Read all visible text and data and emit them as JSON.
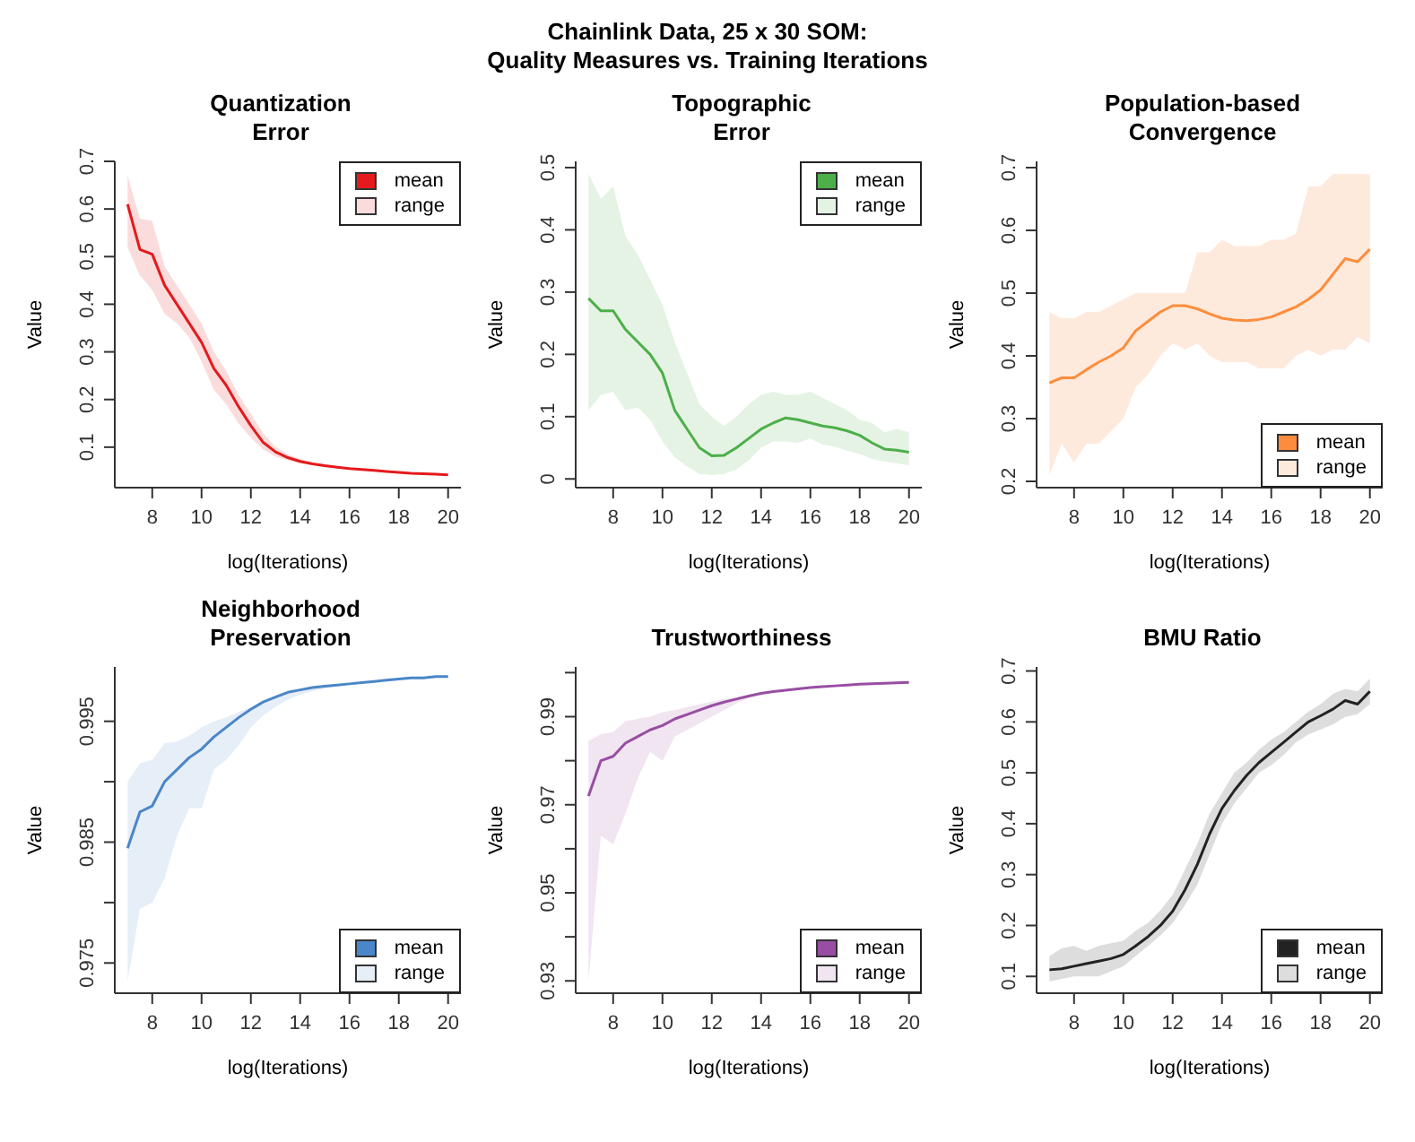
{
  "chart_data": [
    {
      "type": "line",
      "title": "Quantization\nError",
      "xlabel": "log(Iterations)",
      "ylabel": "Value",
      "annotations": [
        "Chainlink Data, 25 x 30 SOM:\nQuality Measures vs. Training Iterations"
      ],
      "legend": "top right",
      "grid": false,
      "marker": "none",
      "xlim": [
        6.48,
        20.52
      ],
      "xticks": [
        8,
        10,
        12,
        14,
        16,
        18,
        20
      ],
      "ylim": [
        0.015,
        0.7
      ],
      "yticks": [
        0.1,
        0.2,
        0.3,
        0.4,
        0.5,
        0.6,
        0.7
      ],
      "x": [
        7,
        7.5,
        8,
        8.5,
        9,
        9.5,
        10,
        10.5,
        11,
        11.5,
        12,
        12.5,
        13,
        13.5,
        14,
        14.5,
        15,
        15.5,
        16,
        16.5,
        17,
        17.5,
        18,
        18.5,
        19,
        19.5,
        20
      ],
      "series": [
        {
          "name": "mean",
          "color": "#e41a1c",
          "values": [
            0.61,
            0.515,
            0.505,
            0.44,
            0.4,
            0.36,
            0.32,
            0.265,
            0.23,
            0.185,
            0.145,
            0.11,
            0.09,
            0.078,
            0.07,
            0.065,
            0.061,
            0.058,
            0.055,
            0.053,
            0.051,
            0.049,
            0.047,
            0.045,
            0.044,
            0.043,
            0.042
          ],
          "upper": [
            0.67,
            0.58,
            0.575,
            0.48,
            0.44,
            0.4,
            0.36,
            0.3,
            0.26,
            0.21,
            0.17,
            0.13,
            0.1,
            0.085,
            0.075,
            0.068,
            0.063,
            0.06,
            0.057,
            0.054,
            0.052,
            0.05,
            0.048,
            0.046,
            0.045,
            0.044,
            0.043
          ],
          "lower": [
            0.52,
            0.46,
            0.43,
            0.38,
            0.36,
            0.33,
            0.28,
            0.22,
            0.19,
            0.15,
            0.12,
            0.095,
            0.08,
            0.072,
            0.066,
            0.062,
            0.058,
            0.056,
            0.053,
            0.051,
            0.049,
            0.047,
            0.045,
            0.044,
            0.043,
            0.042,
            0.041
          ]
        },
        {
          "name": "range",
          "type": "area",
          "color": "#fbdcdc",
          "values": [
            null,
            null,
            null,
            null,
            null,
            null,
            null,
            null,
            null,
            null,
            null,
            null,
            null,
            null,
            null,
            null,
            null,
            null,
            null,
            null,
            null,
            null,
            null,
            null,
            null,
            null,
            null
          ]
        }
      ]
    },
    {
      "type": "line",
      "title": "Topographic\nError",
      "xlabel": "log(Iterations)",
      "ylabel": "Value",
      "legend": "top right",
      "grid": false,
      "marker": "none",
      "xlim": [
        6.48,
        20.52
      ],
      "xticks": [
        8,
        10,
        12,
        14,
        16,
        18,
        20
      ],
      "ylim": [
        -0.014,
        0.51
      ],
      "yticks": [
        0.0,
        0.1,
        0.2,
        0.3,
        0.4,
        0.5
      ],
      "x": [
        7,
        7.5,
        8,
        8.5,
        9,
        9.5,
        10,
        10.5,
        11,
        11.5,
        12,
        12.5,
        13,
        13.5,
        14,
        14.5,
        15,
        15.5,
        16,
        16.5,
        17,
        17.5,
        18,
        18.5,
        19,
        19.5,
        20
      ],
      "series": [
        {
          "name": "mean",
          "color": "#4daf4a",
          "values": [
            0.29,
            0.27,
            0.27,
            0.24,
            0.22,
            0.2,
            0.17,
            0.11,
            0.08,
            0.05,
            0.037,
            0.038,
            0.05,
            0.065,
            0.08,
            0.09,
            0.098,
            0.095,
            0.09,
            0.085,
            0.082,
            0.077,
            0.07,
            0.058,
            0.048,
            0.046,
            0.043
          ],
          "upper": [
            0.49,
            0.45,
            0.47,
            0.39,
            0.36,
            0.32,
            0.28,
            0.22,
            0.17,
            0.12,
            0.1,
            0.085,
            0.1,
            0.12,
            0.135,
            0.14,
            0.135,
            0.135,
            0.14,
            0.13,
            0.12,
            0.11,
            0.095,
            0.09,
            0.075,
            0.08,
            0.075
          ],
          "lower": [
            0.11,
            0.135,
            0.14,
            0.11,
            0.115,
            0.095,
            0.06,
            0.035,
            0.02,
            0.008,
            0.006,
            0.008,
            0.015,
            0.03,
            0.05,
            0.06,
            0.06,
            0.058,
            0.065,
            0.055,
            0.052,
            0.045,
            0.04,
            0.032,
            0.028,
            0.025,
            0.022
          ]
        },
        {
          "name": "range",
          "type": "area",
          "color": "#e5f3e4",
          "values": [
            null,
            null,
            null,
            null,
            null,
            null,
            null,
            null,
            null,
            null,
            null,
            null,
            null,
            null,
            null,
            null,
            null,
            null,
            null,
            null,
            null,
            null,
            null,
            null,
            null,
            null,
            null
          ]
        }
      ]
    },
    {
      "type": "line",
      "title": "Population-based\nConvergence",
      "xlabel": "log(Iterations)",
      "ylabel": "Value",
      "legend": "bottom right",
      "grid": false,
      "marker": "none",
      "xlim": [
        6.48,
        20.52
      ],
      "xticks": [
        8,
        10,
        12,
        14,
        16,
        18,
        20
      ],
      "ylim": [
        0.19,
        0.71
      ],
      "yticks": [
        0.2,
        0.3,
        0.4,
        0.5,
        0.6,
        0.7
      ],
      "x": [
        7,
        7.5,
        8,
        8.5,
        9,
        9.5,
        10,
        10.5,
        11,
        11.5,
        12,
        12.5,
        13,
        13.5,
        14,
        14.5,
        15,
        15.5,
        16,
        16.5,
        17,
        17.5,
        18,
        18.5,
        19,
        19.5,
        20
      ],
      "series": [
        {
          "name": "mean",
          "color": "#fd8d3c",
          "values": [
            0.357,
            0.365,
            0.365,
            0.378,
            0.39,
            0.4,
            0.413,
            0.44,
            0.455,
            0.47,
            0.48,
            0.48,
            0.475,
            0.467,
            0.46,
            0.457,
            0.456,
            0.458,
            0.462,
            0.47,
            0.478,
            0.49,
            0.505,
            0.53,
            0.555,
            0.55,
            0.57
          ],
          "upper": [
            0.47,
            0.46,
            0.46,
            0.47,
            0.47,
            0.48,
            0.49,
            0.5,
            0.5,
            0.5,
            0.5,
            0.5,
            0.565,
            0.565,
            0.585,
            0.575,
            0.575,
            0.575,
            0.585,
            0.585,
            0.595,
            0.67,
            0.67,
            0.69,
            0.69,
            0.69,
            0.69
          ],
          "lower": [
            0.21,
            0.26,
            0.23,
            0.26,
            0.26,
            0.28,
            0.3,
            0.35,
            0.37,
            0.4,
            0.42,
            0.41,
            0.42,
            0.4,
            0.39,
            0.39,
            0.39,
            0.38,
            0.38,
            0.38,
            0.4,
            0.41,
            0.4,
            0.41,
            0.41,
            0.43,
            0.42
          ]
        },
        {
          "name": "range",
          "type": "area",
          "color": "#feeadd",
          "values": [
            null,
            null,
            null,
            null,
            null,
            null,
            null,
            null,
            null,
            null,
            null,
            null,
            null,
            null,
            null,
            null,
            null,
            null,
            null,
            null,
            null,
            null,
            null,
            null,
            null,
            null,
            null
          ]
        }
      ]
    },
    {
      "type": "line",
      "title": "Neighborhood\nPreservation",
      "xlabel": "log(Iterations)",
      "ylabel": "Value",
      "legend": "bottom right",
      "grid": false,
      "marker": "none",
      "xlim": [
        6.48,
        20.52
      ],
      "xticks": [
        8,
        10,
        12,
        14,
        16,
        18,
        20
      ],
      "ylim": [
        0.9725,
        0.9995
      ],
      "yticks": [
        0.975,
        {
          "value": 0.98,
          "label": null
        },
        0.985,
        {
          "value": 0.99,
          "label": null
        },
        0.995
      ],
      "x": [
        7,
        7.5,
        8,
        8.5,
        9,
        9.5,
        10,
        10.5,
        11,
        11.5,
        12,
        12.5,
        13,
        13.5,
        14,
        14.5,
        15,
        15.5,
        16,
        16.5,
        17,
        17.5,
        18,
        18.5,
        19,
        19.5,
        20
      ],
      "series": [
        {
          "name": "mean",
          "color": "#4a86c8",
          "values": [
            0.9845,
            0.9875,
            0.988,
            0.99,
            0.991,
            0.992,
            0.9927,
            0.9937,
            0.9945,
            0.9953,
            0.996,
            0.9966,
            0.997,
            0.9974,
            0.9976,
            0.9978,
            0.9979,
            0.998,
            0.9981,
            0.9982,
            0.9983,
            0.9984,
            0.9985,
            0.9986,
            0.9986,
            0.9987,
            0.9987
          ],
          "upper": [
            0.99,
            0.9915,
            0.9918,
            0.9932,
            0.9933,
            0.9938,
            0.9945,
            0.995,
            0.9953,
            0.9958,
            0.9962,
            0.9967,
            0.997,
            0.9974,
            0.9976,
            0.9978,
            0.9979,
            0.998,
            0.9981,
            0.9982,
            0.9983,
            0.9984,
            0.9985,
            0.9986,
            0.9986,
            0.9987,
            0.9987
          ],
          "lower": [
            0.9735,
            0.9795,
            0.98,
            0.982,
            0.9855,
            0.9878,
            0.9878,
            0.991,
            0.9918,
            0.993,
            0.9945,
            0.9955,
            0.9962,
            0.9968,
            0.9972,
            0.9975,
            0.9977,
            0.9979,
            0.998,
            0.9981,
            0.9982,
            0.9983,
            0.9984,
            0.9985,
            0.9985,
            0.9986,
            0.9986
          ]
        },
        {
          "name": "range",
          "type": "area",
          "color": "#e6eef7",
          "values": [
            null,
            null,
            null,
            null,
            null,
            null,
            null,
            null,
            null,
            null,
            null,
            null,
            null,
            null,
            null,
            null,
            null,
            null,
            null,
            null,
            null,
            null,
            null,
            null,
            null,
            null,
            null
          ]
        }
      ]
    },
    {
      "type": "line",
      "title": "Trustworthiness",
      "xlabel": "log(Iterations)",
      "ylabel": "Value",
      "legend": "bottom right",
      "grid": false,
      "marker": "none",
      "xlim": [
        6.48,
        20.52
      ],
      "ylim": [
        0.9272,
        1.0013
      ],
      "xticks": [
        8,
        10,
        12,
        14,
        16,
        18,
        20
      ],
      "yticks": [
        0.93,
        {
          "value": 0.94,
          "label": null
        },
        0.95,
        {
          "value": 0.96,
          "label": null
        },
        0.97,
        {
          "value": 0.98,
          "label": null
        },
        0.99,
        {
          "value": 1.0,
          "label": null
        }
      ],
      "x": [
        7,
        7.5,
        8,
        8.5,
        9,
        9.5,
        10,
        10.5,
        11,
        11.5,
        12,
        12.5,
        13,
        13.5,
        14,
        14.5,
        15,
        15.5,
        16,
        16.5,
        17,
        17.5,
        18,
        18.5,
        19,
        19.5,
        20
      ],
      "series": [
        {
          "name": "mean",
          "color": "#984ea3",
          "values": [
            0.972,
            0.98,
            0.981,
            0.984,
            0.9855,
            0.987,
            0.988,
            0.9895,
            0.9905,
            0.9915,
            0.9925,
            0.9933,
            0.994,
            0.9947,
            0.9953,
            0.9957,
            0.996,
            0.9963,
            0.9966,
            0.9968,
            0.997,
            0.9972,
            0.9974,
            0.9975,
            0.9976,
            0.9977,
            0.9978
          ],
          "upper": [
            0.9845,
            0.986,
            0.9865,
            0.989,
            0.9895,
            0.99,
            0.991,
            0.9915,
            0.9922,
            0.9928,
            0.9934,
            0.994,
            0.9945,
            0.995,
            0.9954,
            0.9958,
            0.9961,
            0.9964,
            0.9966,
            0.9968,
            0.997,
            0.9972,
            0.9974,
            0.9975,
            0.9976,
            0.9977,
            0.9978
          ],
          "lower": [
            0.93,
            0.963,
            0.961,
            0.968,
            0.976,
            0.982,
            0.98,
            0.9855,
            0.987,
            0.9885,
            0.99,
            0.9915,
            0.993,
            0.9942,
            0.995,
            0.9955,
            0.9958,
            0.9962,
            0.9965,
            0.9967,
            0.9969,
            0.9971,
            0.9973,
            0.9974,
            0.9975,
            0.9976,
            0.9977
          ]
        },
        {
          "name": "range",
          "type": "area",
          "color": "#f0e5f1",
          "values": [
            null,
            null,
            null,
            null,
            null,
            null,
            null,
            null,
            null,
            null,
            null,
            null,
            null,
            null,
            null,
            null,
            null,
            null,
            null,
            null,
            null,
            null,
            null,
            null,
            null,
            null,
            null
          ]
        }
      ]
    },
    {
      "type": "line",
      "title": "BMU Ratio",
      "xlabel": "log(Iterations)",
      "ylabel": "Value",
      "legend": "bottom right",
      "grid": false,
      "marker": "none",
      "xlim": [
        6.48,
        20.52
      ],
      "xticks": [
        8,
        10,
        12,
        14,
        16,
        18,
        20
      ],
      "ylim": [
        0.067,
        0.708
      ],
      "yticks": [
        0.1,
        0.2,
        0.3,
        0.4,
        0.5,
        0.6,
        0.7
      ],
      "x": [
        7,
        7.5,
        8,
        8.5,
        9,
        9.5,
        10,
        10.5,
        11,
        11.5,
        12,
        12.5,
        13,
        13.5,
        14,
        14.5,
        15,
        15.5,
        16,
        16.5,
        17,
        17.5,
        18,
        18.5,
        19,
        19.5,
        20
      ],
      "series": [
        {
          "name": "mean",
          "color": "#222222",
          "values": [
            0.113,
            0.115,
            0.12,
            0.125,
            0.13,
            0.135,
            0.143,
            0.16,
            0.178,
            0.2,
            0.228,
            0.27,
            0.32,
            0.38,
            0.43,
            0.465,
            0.495,
            0.52,
            0.54,
            0.56,
            0.58,
            0.6,
            0.612,
            0.625,
            0.642,
            0.635,
            0.66
          ],
          "upper": [
            0.14,
            0.155,
            0.16,
            0.15,
            0.16,
            0.165,
            0.17,
            0.19,
            0.205,
            0.23,
            0.26,
            0.31,
            0.36,
            0.42,
            0.46,
            0.5,
            0.52,
            0.545,
            0.565,
            0.58,
            0.6,
            0.62,
            0.635,
            0.655,
            0.665,
            0.66,
            0.685
          ],
          "lower": [
            0.09,
            0.095,
            0.1,
            0.1,
            0.1,
            0.11,
            0.12,
            0.14,
            0.16,
            0.18,
            0.205,
            0.24,
            0.28,
            0.34,
            0.4,
            0.44,
            0.47,
            0.5,
            0.515,
            0.535,
            0.56,
            0.575,
            0.585,
            0.595,
            0.61,
            0.615,
            0.635
          ]
        },
        {
          "name": "range",
          "type": "area",
          "color": "#dddddd",
          "values": [
            null,
            null,
            null,
            null,
            null,
            null,
            null,
            null,
            null,
            null,
            null,
            null,
            null,
            null,
            null,
            null,
            null,
            null,
            null,
            null,
            null,
            null,
            null,
            null,
            null,
            null,
            null
          ]
        }
      ]
    }
  ]
}
